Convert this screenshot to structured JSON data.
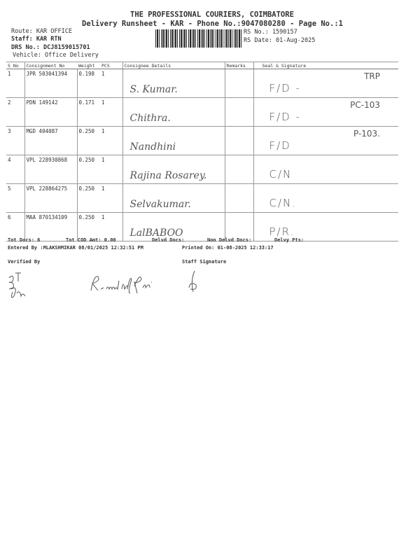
{
  "header": {
    "company": "THE PROFESSIONAL COURIERS, COIMBATORE",
    "subtitle": "Delivery Runsheet - KAR - Phone No.:9047080280 - Page No.:1",
    "route": "Route: KAR OFFICE",
    "staff": "Staff: KAR RTN",
    "drs_no": "DRS No.: DCJ8159015701",
    "vehicle": "Vehicle: Office Delivery",
    "rs_no": "RS No.: 1590157",
    "rs_date": "RS Date: 01-Aug-2025"
  },
  "table": {
    "columns": [
      "S No",
      "Consignment No",
      "Weight",
      "PCS",
      "Consignee Details",
      "Remarks",
      "Seal & Signature"
    ],
    "rows": [
      {
        "sno": "1",
        "consignment": "JPR 503041394",
        "weight": "0.198",
        "pcs": "1",
        "consignee": "S. Kumar.",
        "remarks": "",
        "seal": "F/D -",
        "seal_note": "TRP"
      },
      {
        "sno": "2",
        "consignment": "PDN 149142",
        "weight": "0.171",
        "pcs": "1",
        "consignee": "Chithra.",
        "remarks": "",
        "seal": "F/D -",
        "seal_note": "PC-103"
      },
      {
        "sno": "3",
        "consignment": "MGD 404087",
        "weight": "0.250",
        "pcs": "1",
        "consignee": "Nandhini",
        "remarks": "",
        "seal": "F/D",
        "seal_note": "P-103."
      },
      {
        "sno": "4",
        "consignment": "VPL 228930868",
        "weight": "0.250",
        "pcs": "1",
        "consignee": "Rajina Rosarey.",
        "remarks": "",
        "seal": "C/N",
        "seal_note": ""
      },
      {
        "sno": "5",
        "consignment": "VPL 228864275",
        "weight": "0.250",
        "pcs": "1",
        "consignee": "Selvakumar.",
        "remarks": "",
        "seal": "C/N.",
        "seal_note": ""
      },
      {
        "sno": "6",
        "consignment": "MAA 870134109",
        "weight": "0.250",
        "pcs": "1",
        "consignee": "LalBABOO",
        "remarks": "",
        "seal": "P/R.",
        "seal_note": ""
      }
    ]
  },
  "footer": {
    "tot_docs": "Tot Docs:   6",
    "tot_cod": "Tot COD Amt:    0.00",
    "delvd_docs": "Delvd Docs:",
    "non_delvd_docs": "Non Delvd Docs:",
    "delvy_pts": "Delvy Pts:",
    "entered_by": "Entered By :MLAKSHMIKAR 08/01/2025 12:32:51 PM",
    "printed_on": "Printed On: 01-08-2025 12:33:17",
    "verified_by": "Verified By",
    "staff_signature": "Staff Signature",
    "signatures": [
      "B.T",
      "R. muthukani"
    ]
  }
}
